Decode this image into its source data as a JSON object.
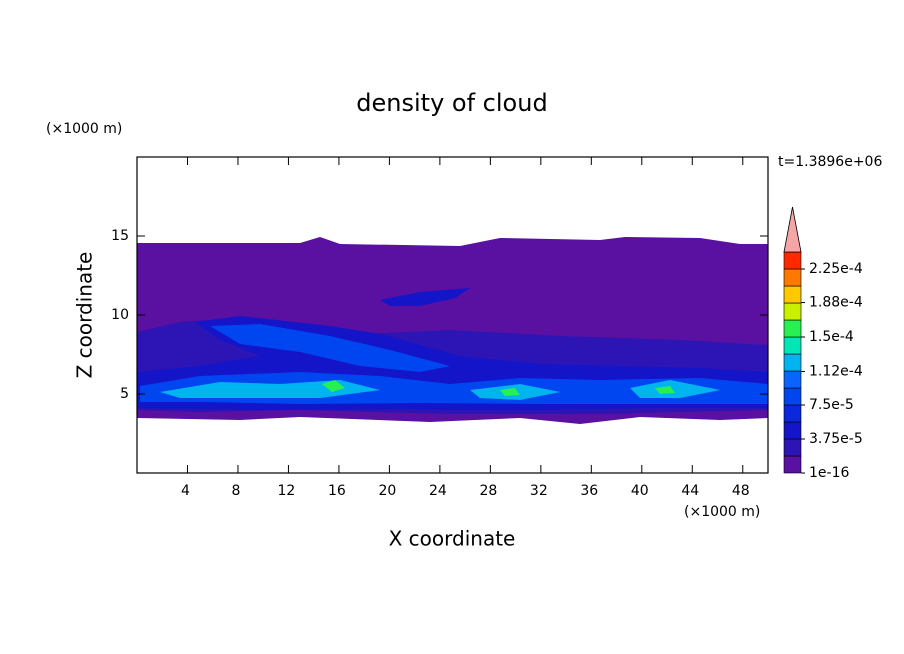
{
  "chart_data": {
    "type": "contour",
    "title": "density of cloud",
    "x_label": "X coordinate",
    "y_label": "Z coordinate",
    "x_unit": "(×1000 m)",
    "y_unit": "(×1000 m)",
    "time_label": "t=1.3896e+06",
    "xlim": [
      0,
      50
    ],
    "ylim": [
      0,
      20
    ],
    "xticks": [
      4,
      8,
      12,
      16,
      20,
      24,
      28,
      32,
      36,
      40,
      44,
      48
    ],
    "yticks": [
      5,
      10,
      15
    ],
    "colorbar": {
      "levels": [
        1e-16,
        1.875e-05,
        3.75e-05,
        5.625e-05,
        7.5e-05,
        9.375e-05,
        0.0001125,
        0.00013125,
        0.00015,
        0.00016875,
        0.0001875,
        0.00020625,
        0.000225,
        0.00024375
      ],
      "colors": [
        "#5a10a0",
        "#2d14b4",
        "#1414c8",
        "#0a28dc",
        "#0046f0",
        "#0a64ff",
        "#00b4f0",
        "#00e6b4",
        "#28f050",
        "#c8f000",
        "#ffc800",
        "#ff7800",
        "#ff2800"
      ],
      "overflow_color": "#f4a6a6",
      "ticks": [
        1e-16,
        {
          "value": 3.75e-05,
          "label": "3.75e-5"
        },
        {
          "value": 7.5e-05,
          "label": "7.5e-5"
        },
        {
          "value": 0.000112,
          "label": "1.12e-4"
        },
        {
          "value": 0.00015,
          "label": "1.5e-4"
        },
        {
          "value": 0.000188,
          "label": "1.88e-4"
        },
        {
          "value": 0.000225,
          "label": "2.25e-4"
        }
      ]
    }
  }
}
